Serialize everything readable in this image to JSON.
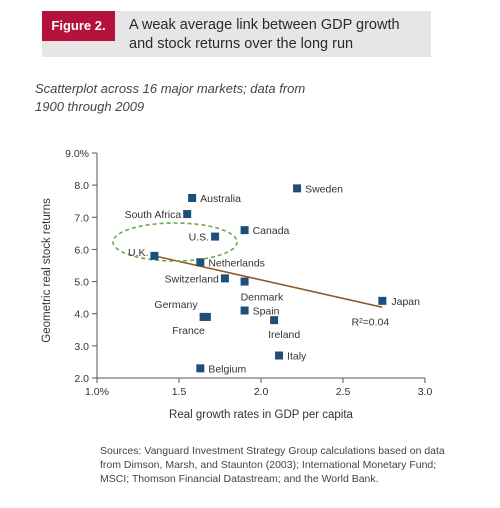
{
  "figure": {
    "label": "Figure 2.",
    "title": "A weak average link between GDP growth and stock returns over the long run",
    "subtitle": "Scatterplot across 16 major markets; data from 1900 through 2009",
    "source": "Sources: Vanguard Investment Strategy Group calculations based on data from Dimson, Marsh, and Staunton (2003); International Monetary Fund; MSCI; Thomson Financial Datastream; and the World Bank."
  },
  "chart_data": {
    "type": "scatter",
    "xlabel": "Real growth rates in GDP per capita",
    "ylabel": "Geometric real stock returns",
    "xlim": [
      1.0,
      3.0
    ],
    "ylim": [
      2.0,
      9.0
    ],
    "x_ticks": [
      1.0,
      1.5,
      2.0,
      2.5,
      3.0
    ],
    "x_tick_labels": [
      "1.0%",
      "1.5",
      "2.0",
      "2.5",
      "3.0"
    ],
    "y_ticks": [
      2.0,
      3.0,
      4.0,
      5.0,
      6.0,
      7.0,
      8.0,
      9.0
    ],
    "y_tick_labels": [
      "2.0",
      "3.0",
      "4.0",
      "5.0",
      "6.0",
      "7.0",
      "8.0",
      "9.0%"
    ],
    "marker_color": "#1f4e79",
    "trend_color": "#8b5a2b",
    "highlight_color": "#6aa84f",
    "points": [
      {
        "label": "Australia",
        "x": 1.58,
        "y": 7.6
      },
      {
        "label": "South Africa",
        "x": 1.55,
        "y": 7.1
      },
      {
        "label": "Sweden",
        "x": 2.22,
        "y": 7.9
      },
      {
        "label": "U.S.",
        "x": 1.72,
        "y": 6.4
      },
      {
        "label": "Canada",
        "x": 1.9,
        "y": 6.6
      },
      {
        "label": "U.K.",
        "x": 1.35,
        "y": 5.8
      },
      {
        "label": "Netherlands",
        "x": 1.63,
        "y": 5.6
      },
      {
        "label": "Switzerland",
        "x": 1.78,
        "y": 5.1
      },
      {
        "label": "Denmark",
        "x": 1.9,
        "y": 5.0
      },
      {
        "label": "Germany",
        "x": 1.65,
        "y": 3.9
      },
      {
        "label": "Spain",
        "x": 1.9,
        "y": 4.1
      },
      {
        "label": "France",
        "x": 1.67,
        "y": 3.9
      },
      {
        "label": "Ireland",
        "x": 2.08,
        "y": 3.8
      },
      {
        "label": "Italy",
        "x": 2.11,
        "y": 2.7
      },
      {
        "label": "Belgium",
        "x": 1.63,
        "y": 2.3
      },
      {
        "label": "Japan",
        "x": 2.74,
        "y": 4.4
      }
    ],
    "trendline": {
      "from": [
        1.35,
        5.8
      ],
      "to": [
        2.74,
        4.2
      ]
    },
    "annotation": "R²=0.04"
  }
}
